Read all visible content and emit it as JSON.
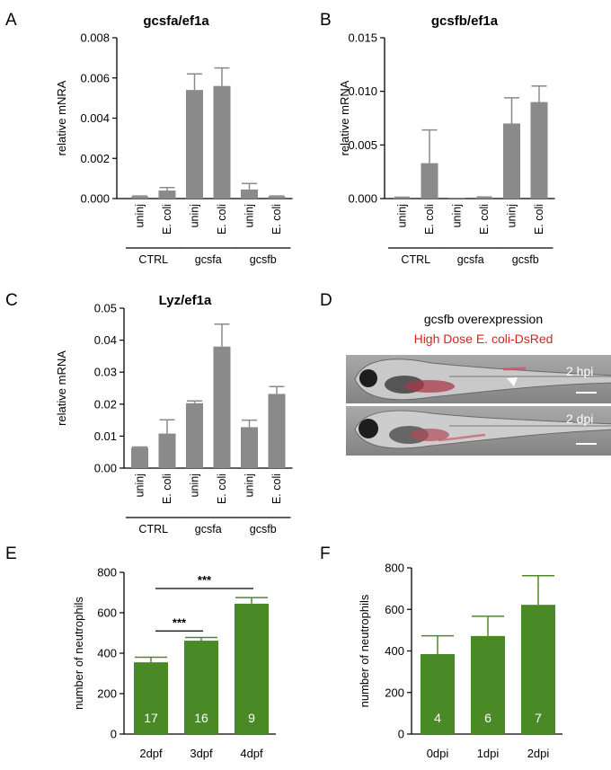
{
  "panels": {
    "A": "A",
    "B": "B",
    "C": "C",
    "D": "D",
    "E": "E",
    "F": "F"
  },
  "colors": {
    "grey_bar": "#8a8a8a",
    "green_bar": "#4a8a26",
    "red_text": "#e01e1e"
  },
  "panel_d": {
    "title": "gcsfb overexpression",
    "subtitle": "High Dose E. coli-DsRed",
    "image1_label": "2 hpi",
    "image2_label": "2 dpi"
  },
  "chart_data": [
    {
      "id": "A",
      "type": "bar",
      "title": "gcsfa/ef1a",
      "ylabel": "relative mNRA",
      "ylim": [
        0,
        0.008
      ],
      "yticks": [
        "0.000",
        "0.002",
        "0.004",
        "0.006",
        "0.008"
      ],
      "categories": [
        "uninj",
        "E. coli",
        "uninj",
        "E. coli",
        "uninj",
        "E. coli"
      ],
      "groups": [
        "CTRL",
        "gcsfa",
        "gcsfb"
      ],
      "values": [
        0.0001,
        0.0004,
        0.0054,
        0.0056,
        0.00045,
        0.0001
      ],
      "errors": [
        3e-05,
        0.00015,
        0.0008,
        0.0009,
        0.0003,
        3e-05
      ]
    },
    {
      "id": "B",
      "type": "bar",
      "title": "gcsfb/ef1a",
      "ylabel": "relative mRNA",
      "ylim": [
        0,
        0.015
      ],
      "yticks": [
        "0.000",
        "0.005",
        "0.010",
        "0.015"
      ],
      "categories": [
        "uninj",
        "E. coli",
        "uninj",
        "E. coli",
        "uninj",
        "E. coli"
      ],
      "groups": [
        "CTRL",
        "gcsfa",
        "gcsfb"
      ],
      "values": [
        0.0001,
        0.0033,
        0.0,
        0.0001,
        0.007,
        0.009
      ],
      "errors": [
        3e-05,
        0.0031,
        0.0,
        5e-05,
        0.0024,
        0.0015
      ]
    },
    {
      "id": "C",
      "type": "bar",
      "title": "Lyz/ef1a",
      "ylabel": "relative mRNA",
      "ylim": [
        0,
        0.05
      ],
      "yticks": [
        "0.00",
        "0.01",
        "0.02",
        "0.03",
        "0.04",
        "0.05"
      ],
      "categories": [
        "uninj",
        "E. coli",
        "uninj",
        "E. coli",
        "uninj",
        "E. coli"
      ],
      "groups": [
        "CTRL",
        "gcsfa",
        "gcsfb"
      ],
      "values": [
        0.0064,
        0.0108,
        0.0203,
        0.038,
        0.0128,
        0.0232
      ],
      "errors": [
        0.0002,
        0.0043,
        0.0007,
        0.007,
        0.0022,
        0.0023
      ]
    },
    {
      "id": "E",
      "type": "bar",
      "title": "",
      "ylabel": "number of neutrophils",
      "ylim": [
        0,
        800
      ],
      "yticks": [
        "0",
        "200",
        "400",
        "600",
        "800"
      ],
      "categories": [
        "2dpf",
        "3dpf",
        "4dpf"
      ],
      "values": [
        355,
        462,
        645
      ],
      "errors": [
        25,
        16,
        30
      ],
      "bar_labels": [
        "17",
        "16",
        "9"
      ],
      "significance": [
        {
          "from": 0,
          "to": 1,
          "label": "***"
        },
        {
          "from": 0,
          "to": 2,
          "label": "***"
        }
      ]
    },
    {
      "id": "F",
      "type": "bar",
      "title": "",
      "ylabel": "number of neutrophils",
      "ylim": [
        0,
        800
      ],
      "yticks": [
        "0",
        "200",
        "400",
        "600",
        "800"
      ],
      "categories": [
        "0dpi",
        "1dpi",
        "2dpi"
      ],
      "values": [
        385,
        472,
        622
      ],
      "errors": [
        88,
        95,
        140
      ],
      "bar_labels": [
        "4",
        "6",
        "7"
      ]
    }
  ]
}
